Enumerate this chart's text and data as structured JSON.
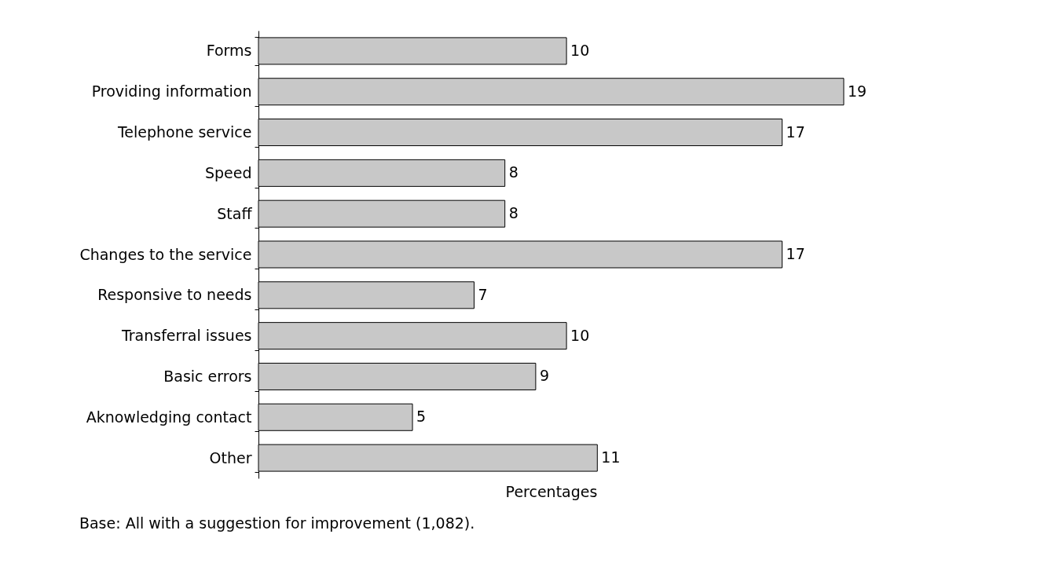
{
  "chart_data": {
    "type": "bar",
    "orientation": "horizontal",
    "categories": [
      "Forms",
      "Providing information",
      "Telephone service",
      "Speed",
      "Staff",
      "Changes to the service",
      "Responsive to needs",
      "Transferral issues",
      "Basic errors",
      "Aknowledging contact",
      "Other"
    ],
    "values": [
      10,
      19,
      17,
      8,
      8,
      17,
      7,
      10,
      9,
      5,
      11
    ],
    "color": "#c8c8c8",
    "xlabel": "Percentages",
    "data_labels": true,
    "tick_labels": "y",
    "grid": false,
    "annotations": [
      "Base: All with a suggestion for improvement (1,082)."
    ]
  }
}
